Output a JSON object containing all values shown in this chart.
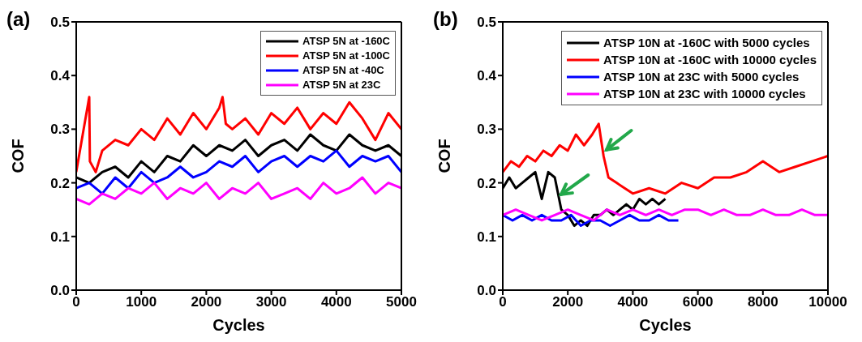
{
  "chart_data": [
    {
      "type": "line",
      "title": "(a)",
      "xlabel": "Cycles",
      "ylabel": "COF",
      "xlim": [
        0,
        5000
      ],
      "xticks": [
        0,
        1000,
        2000,
        3000,
        4000,
        5000
      ],
      "ylim": [
        0,
        0.5
      ],
      "yticks": [
        {
          "value": 0,
          "label": "0.0"
        },
        {
          "value": 0.1,
          "label": "0.1"
        },
        {
          "value": 0.2,
          "label": "0.2"
        },
        {
          "value": 0.3,
          "label": "0.3"
        },
        {
          "value": 0.4,
          "label": "0.4"
        },
        {
          "value": 0.5,
          "label": "0.5"
        }
      ],
      "legend": "top right",
      "marker": "none",
      "line_style": "solid",
      "series": [
        {
          "name": "ATSP 5N at -160C",
          "color": "#000000",
          "x": [
            0,
            200,
            400,
            600,
            800,
            1000,
            1200,
            1400,
            1600,
            1800,
            2000,
            2200,
            2400,
            2600,
            2800,
            3000,
            3200,
            3400,
            3600,
            3800,
            4000,
            4200,
            4400,
            4600,
            4800,
            5000
          ],
          "values": [
            0.21,
            0.2,
            0.22,
            0.23,
            0.21,
            0.24,
            0.22,
            0.25,
            0.24,
            0.27,
            0.25,
            0.27,
            0.26,
            0.28,
            0.25,
            0.27,
            0.28,
            0.26,
            0.29,
            0.27,
            0.26,
            0.29,
            0.27,
            0.26,
            0.27,
            0.25
          ]
        },
        {
          "name": "ATSP 5N at -100C",
          "color": "#ff0000",
          "x": [
            0,
            100,
            200,
            210,
            300,
            400,
            600,
            800,
            1000,
            1200,
            1400,
            1600,
            1800,
            2000,
            2200,
            2250,
            2300,
            2400,
            2600,
            2800,
            3000,
            3200,
            3400,
            3600,
            3800,
            4000,
            4200,
            4400,
            4600,
            4800,
            5000
          ],
          "values": [
            0.22,
            0.29,
            0.36,
            0.24,
            0.22,
            0.26,
            0.28,
            0.27,
            0.3,
            0.28,
            0.32,
            0.29,
            0.33,
            0.3,
            0.34,
            0.36,
            0.31,
            0.3,
            0.32,
            0.29,
            0.33,
            0.31,
            0.34,
            0.3,
            0.33,
            0.31,
            0.35,
            0.32,
            0.28,
            0.33,
            0.3
          ]
        },
        {
          "name": "ATSP 5N at -40C",
          "color": "#0000ff",
          "x": [
            0,
            200,
            400,
            600,
            800,
            1000,
            1200,
            1400,
            1600,
            1800,
            2000,
            2200,
            2400,
            2600,
            2800,
            3000,
            3200,
            3400,
            3600,
            3800,
            4000,
            4200,
            4400,
            4600,
            4800,
            5000
          ],
          "values": [
            0.19,
            0.2,
            0.18,
            0.21,
            0.19,
            0.22,
            0.2,
            0.21,
            0.23,
            0.21,
            0.22,
            0.24,
            0.23,
            0.25,
            0.22,
            0.24,
            0.25,
            0.23,
            0.25,
            0.24,
            0.26,
            0.23,
            0.25,
            0.24,
            0.25,
            0.22
          ]
        },
        {
          "name": "ATSP 5N at 23C",
          "color": "#ff00ff",
          "x": [
            0,
            200,
            400,
            600,
            800,
            1000,
            1200,
            1400,
            1600,
            1800,
            2000,
            2200,
            2400,
            2600,
            2800,
            3000,
            3200,
            3400,
            3600,
            3800,
            4000,
            4200,
            4400,
            4600,
            4800,
            5000
          ],
          "values": [
            0.17,
            0.16,
            0.18,
            0.17,
            0.19,
            0.18,
            0.2,
            0.17,
            0.19,
            0.18,
            0.2,
            0.17,
            0.19,
            0.18,
            0.2,
            0.17,
            0.18,
            0.19,
            0.17,
            0.2,
            0.18,
            0.19,
            0.21,
            0.18,
            0.2,
            0.19
          ]
        }
      ]
    },
    {
      "type": "line",
      "title": "(b)",
      "xlabel": "Cycles",
      "ylabel": "COF",
      "xlim": [
        0,
        10000
      ],
      "xticks": [
        0,
        2000,
        4000,
        6000,
        8000,
        10000
      ],
      "ylim": [
        0,
        0.5
      ],
      "yticks": [
        {
          "value": 0,
          "label": "0.0"
        },
        {
          "value": 0.1,
          "label": "0.1"
        },
        {
          "value": 0.2,
          "label": "0.2"
        },
        {
          "value": 0.3,
          "label": "0.3"
        },
        {
          "value": 0.4,
          "label": "0.4"
        },
        {
          "value": 0.5,
          "label": "0.5"
        }
      ],
      "legend": "top right",
      "marker": "none",
      "line_style": "solid",
      "series": [
        {
          "name": "ATSP 10N at -160C with 5000 cycles",
          "color": "#000000",
          "x": [
            0,
            200,
            400,
            600,
            800,
            1000,
            1200,
            1400,
            1600,
            1800,
            2000,
            2200,
            2400,
            2600,
            2800,
            3000,
            3200,
            3400,
            3600,
            3800,
            4000,
            4200,
            4400,
            4600,
            4800,
            5000
          ],
          "values": [
            0.19,
            0.21,
            0.19,
            0.2,
            0.21,
            0.22,
            0.17,
            0.22,
            0.21,
            0.15,
            0.14,
            0.12,
            0.13,
            0.12,
            0.14,
            0.14,
            0.15,
            0.14,
            0.15,
            0.16,
            0.15,
            0.17,
            0.16,
            0.17,
            0.16,
            0.17
          ]
        },
        {
          "name": "ATSP 10N at -160C with 10000 cycles",
          "color": "#ff0000",
          "x": [
            0,
            250,
            500,
            750,
            1000,
            1250,
            1500,
            1750,
            2000,
            2250,
            2500,
            2750,
            2950,
            3100,
            3250,
            3500,
            3750,
            4000,
            4500,
            5000,
            5500,
            6000,
            6500,
            7000,
            7500,
            8000,
            8500,
            9000,
            9500,
            10000
          ],
          "values": [
            0.22,
            0.24,
            0.23,
            0.25,
            0.24,
            0.26,
            0.25,
            0.27,
            0.26,
            0.29,
            0.27,
            0.29,
            0.31,
            0.25,
            0.21,
            0.2,
            0.19,
            0.18,
            0.19,
            0.18,
            0.2,
            0.19,
            0.21,
            0.21,
            0.22,
            0.24,
            0.22,
            0.23,
            0.24,
            0.25
          ]
        },
        {
          "name": "ATSP 10N at 23C with 5000 cycles",
          "color": "#0000ff",
          "x": [
            0,
            300,
            600,
            900,
            1200,
            1500,
            1800,
            2100,
            2400,
            2700,
            3000,
            3300,
            3600,
            3900,
            4200,
            4500,
            4800,
            5100,
            5400
          ],
          "values": [
            0.14,
            0.13,
            0.14,
            0.13,
            0.14,
            0.13,
            0.13,
            0.14,
            0.12,
            0.13,
            0.13,
            0.12,
            0.13,
            0.14,
            0.13,
            0.13,
            0.14,
            0.13,
            0.13
          ]
        },
        {
          "name": "ATSP 10N at 23C with 10000 cycles",
          "color": "#ff00ff",
          "x": [
            0,
            400,
            800,
            1200,
            1600,
            2000,
            2400,
            2800,
            3200,
            3600,
            4000,
            4400,
            4800,
            5200,
            5600,
            6000,
            6400,
            6800,
            7200,
            7600,
            8000,
            8400,
            8800,
            9200,
            9600,
            10000
          ],
          "values": [
            0.14,
            0.15,
            0.14,
            0.13,
            0.14,
            0.15,
            0.14,
            0.13,
            0.15,
            0.14,
            0.15,
            0.14,
            0.15,
            0.14,
            0.15,
            0.15,
            0.14,
            0.15,
            0.14,
            0.14,
            0.15,
            0.14,
            0.14,
            0.15,
            0.14,
            0.14
          ]
        }
      ]
    }
  ]
}
